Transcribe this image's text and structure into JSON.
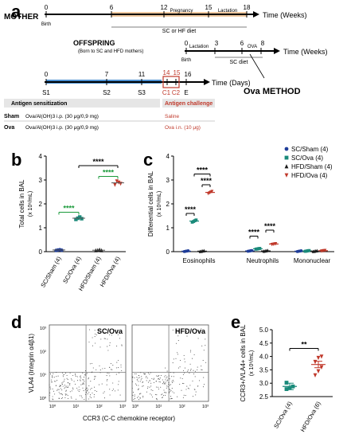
{
  "panel_labels": {
    "a": "a",
    "b": "b",
    "c": "c",
    "d": "d",
    "e": "e"
  },
  "timeline": {
    "mother": {
      "label": "MOTHER",
      "ticks": [
        "0",
        "6",
        "12",
        "15",
        "18"
      ],
      "birth": "Birth",
      "pregnancy": "Pregnancy",
      "lactation": "Lactation",
      "diet": "SC or HF diet",
      "unit": "Time (Weeks)"
    },
    "offspring": {
      "label": "OFFSPRING",
      "sublabel": "(Born to SC and HFD mothers)",
      "ticks": [
        "0",
        "3",
        "6",
        "8"
      ],
      "birth": "Birth",
      "lactation": "Lactation",
      "ova": "OVA",
      "diet": "SC diet",
      "unit": "Time (Weeks)"
    },
    "ova_method": {
      "ticks": [
        "0",
        "7",
        "11",
        "14",
        "15",
        "16"
      ],
      "unit": "Time (Days)",
      "title": "Ova METHOD",
      "stage_labels": [
        "S1",
        "S2",
        "S3",
        "C1",
        "C2",
        "E"
      ],
      "sensitization": "Antigen sensitization",
      "challenge": "Antigen challenge",
      "rows": [
        {
          "group": "Sham",
          "sens": "Ova/Al(OH)3 i.p. (30 μg/0,9 mg)",
          "chal": "Saline"
        },
        {
          "group": "Ova",
          "sens": "Ova/Al(OH)3 i.p. (30 μg/0,9 mg)",
          "chal": "Ova i.n. (10 μg)"
        }
      ]
    }
  },
  "colors": {
    "sc_sham": "#1f3d99",
    "sc_ova": "#1a8a7a",
    "hfd_sham": "#1a1a1a",
    "hfd_ova": "#c0392b",
    "sig_green": "#1a9a3a",
    "diet_bar": "#f0c9a0",
    "sens_bar": "#4a8fd0",
    "chal_box": "#c0392b"
  },
  "chart_data": [
    {
      "type": "scatter",
      "panel": "b",
      "ylabel": "Total cells in BAL",
      "ylabel_unit": "(x 10⁶/mL)",
      "yticks": [
        "0",
        "1",
        "2",
        "3",
        "4"
      ],
      "ylim": [
        0,
        4
      ],
      "categories": [
        "SC/Sham (4)",
        "SC/Ova (4)",
        "HFD/Sham (4)",
        "HFD/Ova (4)"
      ],
      "series": [
        {
          "category": "SC/Sham (4)",
          "values": [
            0.05,
            0.07,
            0.08,
            0.06
          ],
          "mean": 0.07
        },
        {
          "category": "SC/Ova (4)",
          "values": [
            1.35,
            1.4,
            1.45,
            1.38
          ],
          "mean": 1.4
        },
        {
          "category": "HFD/Sham (4)",
          "values": [
            0.05,
            0.06,
            0.08,
            0.05
          ],
          "mean": 0.06
        },
        {
          "category": "HFD/Ova (4)",
          "values": [
            2.8,
            2.95,
            2.9,
            2.85
          ],
          "mean": 2.88
        }
      ],
      "significance": [
        {
          "label": "****",
          "from": 0,
          "to": 1,
          "y": 1.65,
          "color": "green"
        },
        {
          "label": "****",
          "from": 2,
          "to": 3,
          "y": 3.15,
          "color": "green"
        },
        {
          "label": "****",
          "from": 1,
          "to": 3,
          "y": 3.6,
          "color": "black"
        }
      ]
    },
    {
      "type": "scatter",
      "panel": "c",
      "ylabel": "Differential cells in BAL",
      "ylabel_unit": "(x 10⁶/mL)",
      "yticks": [
        "0",
        "1",
        "2",
        "3",
        "4"
      ],
      "ylim": [
        0,
        4
      ],
      "categories": [
        "Eosinophils",
        "Neutrophils",
        "Mononuclear"
      ],
      "legend_position": "top-right",
      "legend": [
        "SC/Sham (4)",
        "SC/Ova (4)",
        "HFD/Sham (4)",
        "HFD/Ova (4)"
      ],
      "groups": [
        {
          "category": "Eosinophils",
          "means": [
            0.02,
            1.28,
            0.02,
            2.48
          ]
        },
        {
          "category": "Neutrophils",
          "means": [
            0.03,
            0.12,
            0.03,
            0.32
          ]
        },
        {
          "category": "Mononuclear",
          "means": [
            0.02,
            0.03,
            0.02,
            0.04
          ]
        }
      ],
      "significance": [
        {
          "label": "****",
          "group": 0,
          "from": 0,
          "to": 1,
          "y": 1.6
        },
        {
          "label": "****",
          "group": 0,
          "from": 2,
          "to": 3,
          "y": 2.8
        },
        {
          "label": "****",
          "group": 0,
          "from": 1,
          "to": 3,
          "y": 3.25
        },
        {
          "label": "****",
          "group": 1,
          "from": 0,
          "to": 1,
          "y": 0.65
        },
        {
          "label": "****",
          "group": 1,
          "from": 2,
          "to": 3,
          "y": 0.9
        }
      ]
    },
    {
      "type": "scatter",
      "panel": "e",
      "ylabel": "CCR3+/VLA4+ cells in BAL",
      "ylabel_unit": "(x 10⁶/mL)",
      "yticks": [
        "2.5",
        "3.0",
        "3.5",
        "4.0",
        "4.5",
        "5.0"
      ],
      "ylim": [
        2.5,
        5.0
      ],
      "categories": [
        "SC/Ova (4)",
        "HFD/Ova (6)"
      ],
      "series": [
        {
          "category": "SC/Ova (4)",
          "values": [
            2.78,
            2.82,
            2.88,
            3.02
          ],
          "mean": 2.88
        },
        {
          "category": "HFD/Ova (6)",
          "values": [
            3.3,
            3.45,
            3.6,
            3.8,
            3.95,
            4.0
          ],
          "mean": 3.7
        }
      ],
      "significance": [
        {
          "label": "**",
          "from": 0,
          "to": 1,
          "y": 4.3
        }
      ]
    }
  ],
  "flow": {
    "panels": [
      "SC/Ova",
      "HFD/Ova"
    ],
    "ylabel": "VLA4 (Integrin α4β1)",
    "xlabel": "CCR3 (C-C chemokine receptor)",
    "axis_ticks": [
      "10⁰",
      "10¹",
      "10²",
      "10³"
    ]
  }
}
